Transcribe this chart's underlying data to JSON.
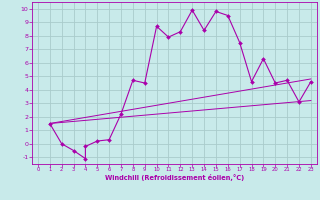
{
  "xlabel": "Windchill (Refroidissement éolien,°C)",
  "bg_color": "#c8eaea",
  "line_color": "#aa00aa",
  "grid_color": "#aacccc",
  "xlim": [
    -0.5,
    23.5
  ],
  "ylim": [
    -1.5,
    10.5
  ],
  "xticks": [
    0,
    1,
    2,
    3,
    4,
    5,
    6,
    7,
    8,
    9,
    10,
    11,
    12,
    13,
    14,
    15,
    16,
    17,
    18,
    19,
    20,
    21,
    22,
    23
  ],
  "yticks": [
    -1,
    0,
    1,
    2,
    3,
    4,
    5,
    6,
    7,
    8,
    9,
    10
  ],
  "series": [
    [
      1,
      1.5
    ],
    [
      2,
      0.0
    ],
    [
      3,
      -0.5
    ],
    [
      4,
      -1.1
    ],
    [
      4,
      -0.2
    ],
    [
      5,
      0.2
    ],
    [
      6,
      0.3
    ],
    [
      7,
      2.2
    ],
    [
      8,
      4.7
    ],
    [
      9,
      4.5
    ],
    [
      10,
      8.7
    ],
    [
      11,
      7.9
    ],
    [
      12,
      8.3
    ],
    [
      13,
      9.9
    ],
    [
      14,
      8.4
    ],
    [
      15,
      9.8
    ],
    [
      16,
      9.5
    ],
    [
      17,
      7.5
    ],
    [
      18,
      4.6
    ],
    [
      19,
      6.3
    ],
    [
      20,
      4.5
    ],
    [
      21,
      4.7
    ],
    [
      22,
      3.1
    ],
    [
      23,
      4.6
    ]
  ],
  "line2": [
    [
      1,
      1.5
    ],
    [
      23,
      3.2
    ]
  ],
  "line3": [
    [
      1,
      1.5
    ],
    [
      23,
      4.8
    ]
  ]
}
